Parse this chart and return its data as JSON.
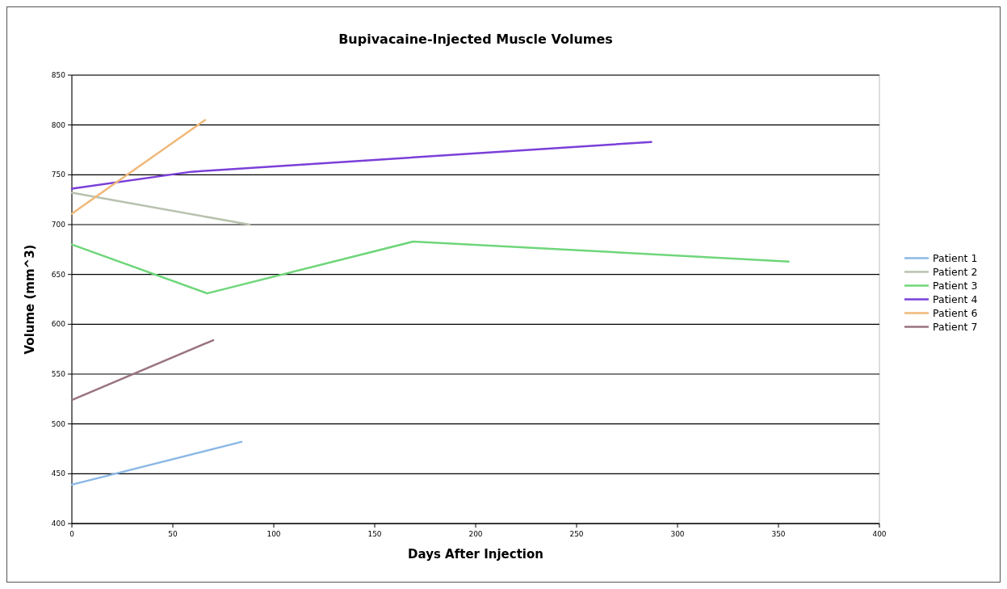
{
  "chart_data": {
    "type": "line",
    "title": "Bupivacaine-Injected Muscle Volumes",
    "xlabel": "Days After Injection",
    "ylabel": "Volume (mm^3)",
    "xlim": [
      0,
      400
    ],
    "xticks": [
      0,
      50,
      100,
      150,
      200,
      250,
      300,
      350,
      400
    ],
    "ylim": [
      400,
      850
    ],
    "yticks": [
      400,
      450,
      500,
      550,
      600,
      650,
      700,
      750,
      800,
      850
    ],
    "grid": "y",
    "legend": "right",
    "marker": "none",
    "line_style": "solid",
    "series": [
      {
        "name": "Patient 1",
        "color": "#8ab8e6",
        "x": [
          0,
          84
        ],
        "values": [
          439,
          482
        ]
      },
      {
        "name": "Patient 2",
        "color": "#b8c2ae",
        "x": [
          0,
          88
        ],
        "values": [
          732,
          700
        ]
      },
      {
        "name": "Patient 3",
        "color": "#6fd67a",
        "x": [
          0,
          67,
          169,
          355
        ],
        "values": [
          680,
          631,
          683,
          663
        ]
      },
      {
        "name": "Patient 4",
        "color": "#7a3fd9",
        "x": [
          0,
          59,
          287
        ],
        "values": [
          736,
          753,
          783
        ]
      },
      {
        "name": "Patient 6",
        "color": "#f0b878",
        "x": [
          0,
          66
        ],
        "values": [
          711,
          805
        ]
      },
      {
        "name": "Patient 7",
        "color": "#9a7480",
        "x": [
          0,
          70
        ],
        "values": [
          524,
          584
        ]
      }
    ]
  }
}
